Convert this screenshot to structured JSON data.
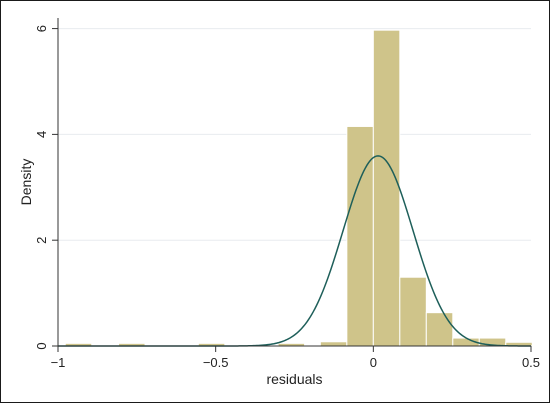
{
  "chart_data": {
    "type": "bar",
    "xlabel": "residuals",
    "ylabel": "Density",
    "xlim": [
      -1.0,
      0.5
    ],
    "ylim": [
      0,
      6.2
    ],
    "xticks": [
      {
        "value": -1,
        "label": "−1"
      },
      {
        "value": -0.5,
        "label": "−0.5"
      },
      {
        "value": 0,
        "label": "0"
      },
      {
        "value": 0.5,
        "label": "0.5"
      }
    ],
    "yticks": [
      {
        "value": 0,
        "label": "0"
      },
      {
        "value": 2,
        "label": "2"
      },
      {
        "value": 4,
        "label": "4"
      },
      {
        "value": 6,
        "label": "6"
      }
    ],
    "grid": true,
    "bins": [
      {
        "x0": -0.977,
        "x1": -0.893,
        "density": 0.05
      },
      {
        "x0": -0.808,
        "x1": -0.724,
        "density": 0.05
      },
      {
        "x0": -0.555,
        "x1": -0.471,
        "density": 0.05
      },
      {
        "x0": -0.302,
        "x1": -0.218,
        "density": 0.05
      },
      {
        "x0": -0.168,
        "x1": -0.084,
        "density": 0.08
      },
      {
        "x0": -0.084,
        "x1": 0.0,
        "density": 4.15
      },
      {
        "x0": 0.0,
        "x1": 0.084,
        "density": 5.97
      },
      {
        "x0": 0.084,
        "x1": 0.168,
        "density": 1.3
      },
      {
        "x0": 0.168,
        "x1": 0.252,
        "density": 0.63
      },
      {
        "x0": 0.252,
        "x1": 0.336,
        "density": 0.15
      },
      {
        "x0": 0.336,
        "x1": 0.42,
        "density": 0.15
      },
      {
        "x0": 0.42,
        "x1": 0.504,
        "density": 0.07
      }
    ],
    "overlay": {
      "type": "normal-density",
      "mean": 0.015,
      "sd": 0.111
    },
    "colors": {
      "bar_fill": "#cfc48a",
      "bar_stroke": "#ffffff",
      "curve": "#1e5f5a",
      "grid": "#e8ecef",
      "axis": "#333333"
    }
  }
}
